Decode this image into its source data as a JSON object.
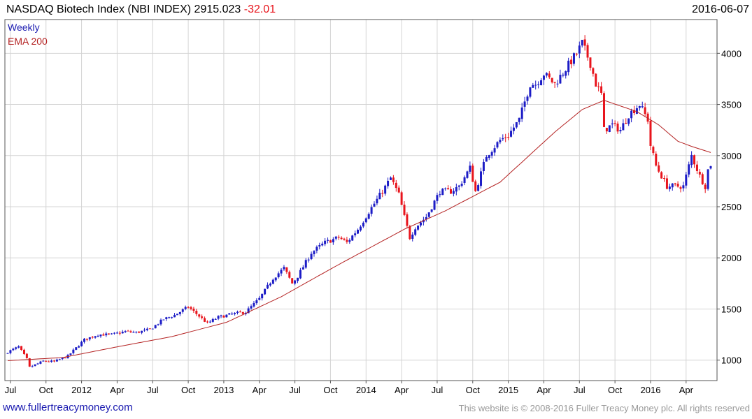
{
  "header": {
    "symbol_title": "NASDAQ Biotech Index (NBI INDEX)",
    "last": "2915.023",
    "change": "-32.01",
    "date": "2016-06-07"
  },
  "legend": {
    "weekly": "Weekly",
    "ema": "EMA 200"
  },
  "footer": {
    "link": "www.fullertreacymoney.com",
    "copyright": "This website is © 2008-2016 Fuller Treacy Money plc. All rights reserved"
  },
  "colors": {
    "up": "#1c1cc6",
    "down": "#e8141c",
    "ema": "#b42222",
    "grid": "#d4d4d4",
    "frame": "#555555"
  },
  "chart_data": {
    "type": "candlestick",
    "title": "NASDAQ Biotech Index (NBI INDEX)",
    "interval": "Weekly",
    "overlay": "EMA 200",
    "ylim": [
      800,
      4330
    ],
    "y_ticks": [
      1000,
      1500,
      2000,
      2500,
      3000,
      3500,
      4000
    ],
    "x_ticks": [
      {
        "label": "Jul",
        "week": 1
      },
      {
        "label": "Oct",
        "week": 14
      },
      {
        "label": "2012",
        "week": 27
      },
      {
        "label": "Apr",
        "week": 40
      },
      {
        "label": "Jul",
        "week": 53
      },
      {
        "label": "Oct",
        "week": 66
      },
      {
        "label": "2013",
        "week": 79
      },
      {
        "label": "Apr",
        "week": 92
      },
      {
        "label": "Jul",
        "week": 105
      },
      {
        "label": "Oct",
        "week": 118
      },
      {
        "label": "2014",
        "week": 131
      },
      {
        "label": "Apr",
        "week": 144
      },
      {
        "label": "Jul",
        "week": 157
      },
      {
        "label": "Oct",
        "week": 170
      },
      {
        "label": "2015",
        "week": 183
      },
      {
        "label": "Apr",
        "week": 196
      },
      {
        "label": "Jul",
        "week": 209
      },
      {
        "label": "Oct",
        "week": 222
      },
      {
        "label": "2016",
        "week": 235
      },
      {
        "label": "Apr",
        "week": 248
      }
    ],
    "weeks": 258,
    "close_keypoints": [
      [
        0,
        1080
      ],
      [
        4,
        1130
      ],
      [
        7,
        1010
      ],
      [
        8,
        930
      ],
      [
        13,
        990
      ],
      [
        17,
        985
      ],
      [
        22,
        1040
      ],
      [
        28,
        1200
      ],
      [
        33,
        1250
      ],
      [
        38,
        1250
      ],
      [
        43,
        1280
      ],
      [
        47,
        1270
      ],
      [
        52,
        1300
      ],
      [
        57,
        1400
      ],
      [
        61,
        1440
      ],
      [
        66,
        1520
      ],
      [
        70,
        1430
      ],
      [
        73,
        1360
      ],
      [
        77,
        1420
      ],
      [
        82,
        1450
      ],
      [
        87,
        1470
      ],
      [
        92,
        1600
      ],
      [
        97,
        1800
      ],
      [
        101,
        1900
      ],
      [
        104,
        1750
      ],
      [
        106,
        1820
      ],
      [
        111,
        2050
      ],
      [
        116,
        2150
      ],
      [
        121,
        2200
      ],
      [
        124,
        2150
      ],
      [
        128,
        2280
      ],
      [
        132,
        2450
      ],
      [
        137,
        2650
      ],
      [
        140,
        2780
      ],
      [
        143,
        2620
      ],
      [
        145,
        2400
      ],
      [
        147,
        2200
      ],
      [
        149,
        2300
      ],
      [
        153,
        2400
      ],
      [
        158,
        2650
      ],
      [
        162,
        2650
      ],
      [
        165,
        2700
      ],
      [
        169,
        2880
      ],
      [
        171,
        2650
      ],
      [
        175,
        3000
      ],
      [
        180,
        3150
      ],
      [
        183,
        3200
      ],
      [
        187,
        3350
      ],
      [
        191,
        3700
      ],
      [
        193,
        3700
      ],
      [
        196,
        3800
      ],
      [
        200,
        3700
      ],
      [
        204,
        3850
      ],
      [
        208,
        4000
      ],
      [
        210,
        4100
      ],
      [
        213,
        3900
      ],
      [
        215,
        3700
      ],
      [
        217,
        3600
      ],
      [
        218,
        3250
      ],
      [
        221,
        3300
      ],
      [
        224,
        3250
      ],
      [
        227,
        3400
      ],
      [
        231,
        3500
      ],
      [
        234,
        3350
      ],
      [
        235,
        3100
      ],
      [
        237,
        2900
      ],
      [
        239,
        2800
      ],
      [
        241,
        2700
      ],
      [
        244,
        2700
      ],
      [
        247,
        2700
      ],
      [
        250,
        3000
      ],
      [
        253,
        2800
      ],
      [
        255,
        2700
      ],
      [
        256,
        2860
      ],
      [
        257,
        2915
      ]
    ],
    "ema_keypoints": [
      [
        0,
        995
      ],
      [
        20,
        1025
      ],
      [
        40,
        1130
      ],
      [
        60,
        1230
      ],
      [
        80,
        1370
      ],
      [
        100,
        1620
      ],
      [
        120,
        1920
      ],
      [
        145,
        2280
      ],
      [
        160,
        2460
      ],
      [
        180,
        2740
      ],
      [
        200,
        3230
      ],
      [
        210,
        3450
      ],
      [
        218,
        3540
      ],
      [
        230,
        3430
      ],
      [
        238,
        3300
      ],
      [
        245,
        3140
      ],
      [
        250,
        3090
      ],
      [
        257,
        3030
      ]
    ]
  }
}
